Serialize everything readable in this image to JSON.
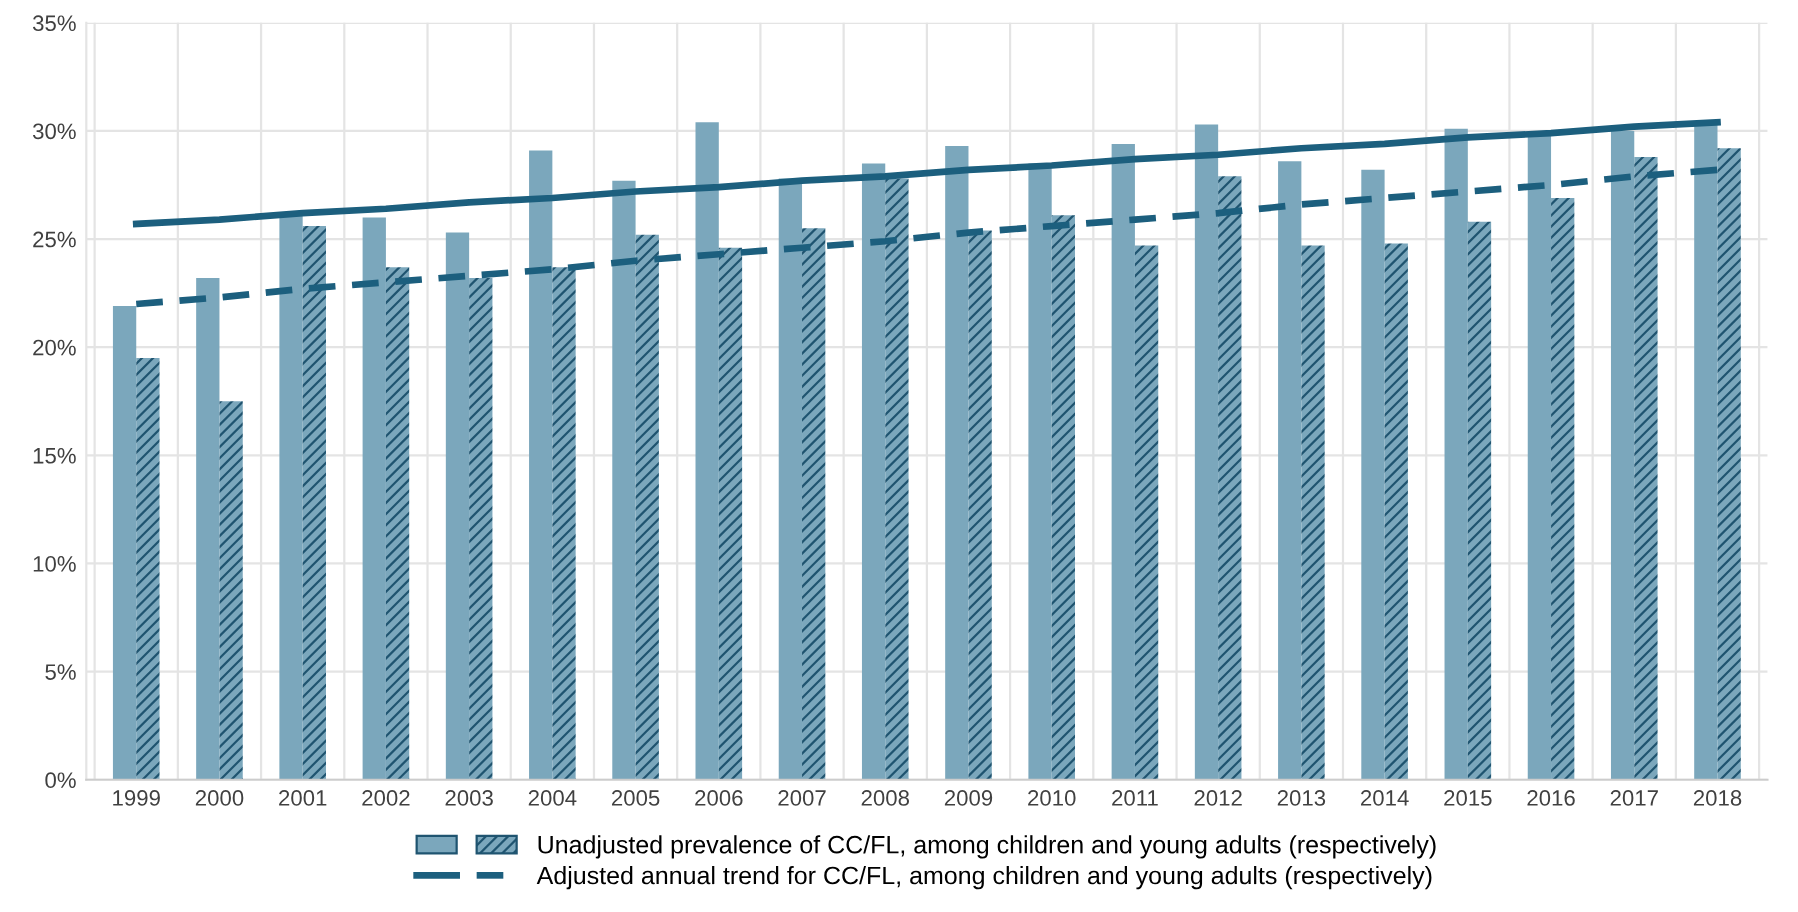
{
  "chart_data": {
    "type": "bar",
    "categories": [
      "1999",
      "2000",
      "2001",
      "2002",
      "2003",
      "2004",
      "2005",
      "2006",
      "2007",
      "2008",
      "2009",
      "2010",
      "2011",
      "2012",
      "2013",
      "2014",
      "2015",
      "2016",
      "2017",
      "2018"
    ],
    "series": [
      {
        "name": "Unadjusted prevalence of CC/FL, among children and young adults (respectively)",
        "color": "#7ba7bc",
        "values": [
          21.9,
          23.2,
          26.1,
          26.0,
          25.3,
          29.1,
          27.7,
          30.4,
          27.8,
          28.5,
          29.3,
          28.5,
          29.4,
          30.3,
          28.6,
          28.2,
          30.1,
          29.8,
          30.0,
          30.4
        ]
      },
      {
        "color": "#7ba7bc",
        "values": [
          19.5,
          17.5,
          25.6,
          23.7,
          23.2,
          23.7,
          25.2,
          24.6,
          25.5,
          27.8,
          25.4,
          26.1,
          24.7,
          27.9,
          24.7,
          24.8,
          25.8,
          26.9,
          28.8,
          29.2
        ]
      },
      {
        "type": "line",
        "name": "Adjusted annual trend for CC/FL, among children and young adults (respectively)",
        "color": "#1c5f7e",
        "line_style": "solid",
        "values": [
          25.7,
          25.9,
          26.2,
          26.4,
          26.7,
          26.9,
          27.2,
          27.4,
          27.7,
          27.9,
          28.2,
          28.4,
          28.7,
          28.9,
          29.2,
          29.4,
          29.7,
          29.9,
          30.2,
          30.4
        ]
      },
      {
        "type": "line",
        "color": "#1c5f7e",
        "line_style": "dashed",
        "values": [
          22.0,
          22.3,
          22.7,
          23.0,
          23.3,
          23.6,
          24.0,
          24.3,
          24.6,
          24.9,
          25.3,
          25.6,
          25.9,
          26.2,
          26.6,
          26.9,
          27.2,
          27.5,
          27.9,
          28.2
        ]
      }
    ],
    "ylim": [
      0,
      35
    ],
    "yticks": [
      {
        "value": 0,
        "label": "0%"
      },
      {
        "value": 5,
        "label": "5%"
      },
      {
        "value": 10,
        "label": "10%"
      },
      {
        "value": 15,
        "label": "15%"
      },
      {
        "value": 20,
        "label": "20%"
      },
      {
        "value": 25,
        "label": "25%"
      },
      {
        "value": 30,
        "label": "30%"
      },
      {
        "value": 35,
        "label": "35%"
      }
    ],
    "grid": true,
    "legend": "bottom"
  }
}
